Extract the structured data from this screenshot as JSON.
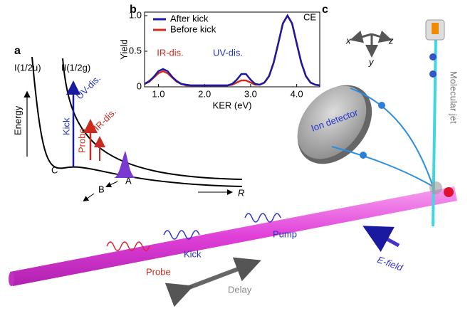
{
  "panel_labels": [
    "a",
    "b",
    "c"
  ],
  "panel_a": {
    "curve_labels": [
      "I(1/2u)",
      "II(1/2g)"
    ],
    "energy": "Energy",
    "uv": "UV-dis.",
    "ir": "IR-dis.",
    "kick": "Kick",
    "probe": "Probe",
    "points": [
      "A",
      "B",
      "C"
    ],
    "r_axis": "R"
  },
  "panel_c": {
    "detector": "Ion detector",
    "jet": "Molecular jet",
    "efield": "E-field",
    "pump": "Pump",
    "kick": "Kick",
    "probe": "Probe",
    "delay": "Delay",
    "axes": [
      "x",
      "y",
      "z"
    ]
  },
  "chart_data": {
    "type": "line",
    "x_label": "KER (eV)",
    "y_label": "Yield",
    "annotations": [
      "IR-dis.",
      "UV-dis.",
      "CE"
    ],
    "x": [
      0.7,
      0.8,
      0.9,
      1.0,
      1.1,
      1.2,
      1.3,
      1.4,
      1.5,
      1.6,
      1.7,
      1.8,
      1.9,
      2.0,
      2.1,
      2.2,
      2.3,
      2.4,
      2.5,
      2.6,
      2.7,
      2.8,
      2.9,
      3.0,
      3.1,
      3.2,
      3.3,
      3.4,
      3.5,
      3.6,
      3.7,
      3.8,
      3.9,
      4.0,
      4.1,
      4.2,
      4.3,
      4.4,
      4.5
    ],
    "series": [
      {
        "name": "After kick",
        "color": "#1a1aa0",
        "values": [
          0.04,
          0.08,
          0.14,
          0.22,
          0.25,
          0.22,
          0.14,
          0.08,
          0.04,
          0.03,
          0.02,
          0.02,
          0.02,
          0.02,
          0.02,
          0.02,
          0.02,
          0.02,
          0.02,
          0.04,
          0.1,
          0.18,
          0.18,
          0.1,
          0.04,
          0.03,
          0.06,
          0.15,
          0.34,
          0.61,
          0.89,
          1.0,
          0.89,
          0.61,
          0.34,
          0.15,
          0.06,
          0.03,
          0.02
        ]
      },
      {
        "name": "Before kick",
        "color": "#d42a1a",
        "values": [
          0.04,
          0.07,
          0.13,
          0.19,
          0.22,
          0.19,
          0.13,
          0.07,
          0.04,
          0.02,
          0.02,
          0.02,
          0.02,
          0.02,
          0.02,
          0.02,
          0.02,
          0.02,
          0.02,
          0.03,
          0.06,
          0.09,
          0.09,
          0.06,
          0.03,
          0.03,
          0.06,
          0.15,
          0.34,
          0.61,
          0.89,
          1.0,
          0.89,
          0.61,
          0.34,
          0.15,
          0.06,
          0.03,
          0.02
        ]
      }
    ],
    "xlim": [
      0.7,
      4.5
    ],
    "ylim": [
      0,
      1.05
    ],
    "xticks": [
      {
        "value": 1,
        "label": "1.0"
      },
      {
        "value": 2,
        "label": "2.0"
      },
      {
        "value": 3,
        "label": "3.0"
      },
      {
        "value": 4,
        "label": "4.0"
      }
    ],
    "yticks": [
      0,
      0.5,
      {
        "value": 1,
        "label": "1.0"
      }
    ]
  }
}
